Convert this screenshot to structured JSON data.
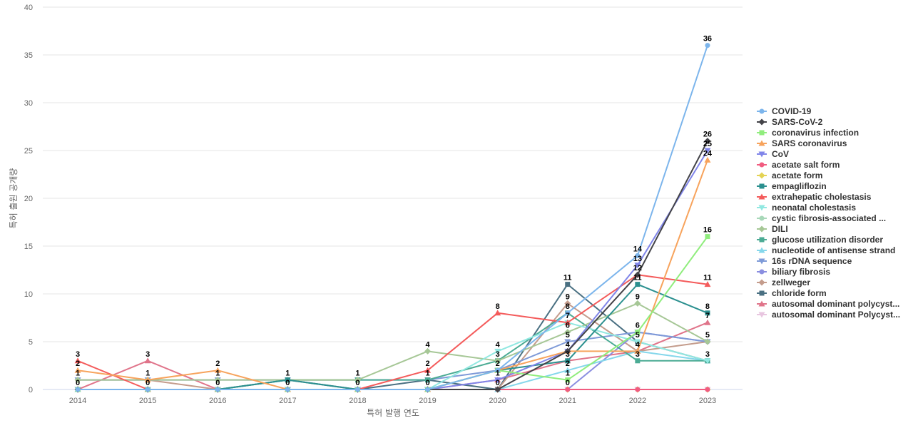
{
  "chart_data": {
    "type": "line",
    "xlabel": "특허 발행 연도",
    "ylabel": "특허 출원 공개량",
    "ylim": [
      0,
      40
    ],
    "y_ticks": [
      0,
      5,
      10,
      15,
      20,
      25,
      30,
      35,
      40
    ],
    "grid": "horizontal",
    "legend_position": "right",
    "x": [
      "2014",
      "2015",
      "2016",
      "2017",
      "2018",
      "2019",
      "2020",
      "2021",
      "2022",
      "2023"
    ],
    "series": [
      {
        "name": "COVID-19",
        "color": "#7cb5ec",
        "marker": "circle",
        "values": [
          0,
          0,
          0,
          0,
          0,
          0,
          2,
          8,
          14,
          36
        ]
      },
      {
        "name": "SARS-CoV-2",
        "color": "#434348",
        "marker": "diamond",
        "values": [
          0,
          0,
          0,
          0,
          0,
          0,
          0,
          4,
          12,
          26
        ]
      },
      {
        "name": "coronavirus infection",
        "color": "#90ed7d",
        "marker": "square",
        "values": [
          0,
          0,
          0,
          0,
          0,
          0,
          2,
          1,
          6,
          16
        ]
      },
      {
        "name": "SARS coronavirus",
        "color": "#f7a35c",
        "marker": "triangle",
        "values": [
          2,
          1,
          2,
          0,
          0,
          0,
          2,
          4,
          4,
          24
        ]
      },
      {
        "name": "CoV",
        "color": "#8085e9",
        "marker": "triangle-down",
        "values": [
          0,
          0,
          0,
          0,
          0,
          0,
          1,
          4,
          13,
          25
        ]
      },
      {
        "name": "acetate salt form",
        "color": "#f15c80",
        "marker": "circle",
        "values": [
          0,
          0,
          0,
          0,
          0,
          0,
          0,
          0,
          0,
          0
        ]
      },
      {
        "name": "acetate form",
        "color": "#e4d354",
        "marker": "diamond",
        "values": [
          0,
          0,
          0,
          0,
          0,
          0,
          0,
          0,
          0,
          0
        ]
      },
      {
        "name": "empagliflozin",
        "color": "#2b908f",
        "marker": "square",
        "values": [
          0,
          0,
          0,
          1,
          0,
          0,
          2,
          3,
          11,
          8
        ]
      },
      {
        "name": "extrahepatic cholestasis",
        "color": "#f45b5b",
        "marker": "triangle",
        "values": [
          3,
          0,
          0,
          0,
          0,
          2,
          8,
          7,
          12,
          11
        ]
      },
      {
        "name": "neonatal cholestasis",
        "color": "#91e8e1",
        "marker": "triangle-down",
        "values": [
          0,
          0,
          0,
          0,
          0,
          0,
          4,
          7,
          5,
          3
        ]
      },
      {
        "name": "cystic fibrosis-associated ...",
        "color": "#a8d8b9",
        "marker": "circle",
        "values": [
          0,
          0,
          0,
          0,
          0,
          0,
          0,
          0,
          0,
          0
        ]
      },
      {
        "name": "DILI",
        "color": "#a6c796",
        "marker": "diamond",
        "values": [
          1,
          1,
          1,
          1,
          1,
          4,
          3,
          6,
          9,
          5
        ]
      },
      {
        "name": "glucose utilization disorder",
        "color": "#4bab94",
        "marker": "square",
        "values": [
          0,
          0,
          0,
          1,
          1,
          1,
          3,
          8,
          3,
          3
        ]
      },
      {
        "name": "nucleotide of antisense strand",
        "color": "#85d7eb",
        "marker": "triangle",
        "values": [
          0,
          0,
          0,
          0,
          0,
          0,
          0,
          2,
          4,
          3
        ]
      },
      {
        "name": "16s rDNA sequence",
        "color": "#7e9ad8",
        "marker": "triangle-down",
        "values": [
          1,
          1,
          1,
          1,
          1,
          1,
          2,
          5,
          6,
          5
        ]
      },
      {
        "name": "biliary fibrosis",
        "color": "#8a8ee0",
        "marker": "circle",
        "values": [
          0,
          0,
          0,
          0,
          0,
          0,
          0,
          0,
          6,
          5
        ]
      },
      {
        "name": "zellweger",
        "color": "#c49c8c",
        "marker": "diamond",
        "values": [
          1,
          1,
          0,
          0,
          0,
          0,
          0,
          9,
          4,
          5
        ]
      },
      {
        "name": "chloride form",
        "color": "#4a7082",
        "marker": "square",
        "values": [
          0,
          0,
          0,
          1,
          0,
          1,
          0,
          11,
          5,
          3
        ]
      },
      {
        "name": "autosomal dominant polycyst...",
        "color": "#e0748a",
        "marker": "triangle",
        "values": [
          0,
          3,
          0,
          0,
          0,
          0,
          1,
          3,
          4,
          7
        ]
      },
      {
        "name": "autosomal dominant Polycyst...",
        "color": "#e8c6e0",
        "marker": "triangle-down",
        "values": [
          0,
          0,
          0,
          0,
          0,
          0,
          0,
          0,
          0,
          0
        ]
      }
    ],
    "data_labels": [
      {
        "x": "2014",
        "value": 3
      },
      {
        "x": "2014",
        "value": 2
      },
      {
        "x": "2014",
        "value": 1
      },
      {
        "x": "2014",
        "value": 0
      },
      {
        "x": "2015",
        "value": 3
      },
      {
        "x": "2015",
        "value": 1
      },
      {
        "x": "2015",
        "value": 0
      },
      {
        "x": "2016",
        "value": 2
      },
      {
        "x": "2016",
        "value": 1
      },
      {
        "x": "2016",
        "value": 0
      },
      {
        "x": "2017",
        "value": 1
      },
      {
        "x": "2017",
        "value": 0
      },
      {
        "x": "2018",
        "value": 1
      },
      {
        "x": "2018",
        "value": 0
      },
      {
        "x": "2019",
        "value": 4
      },
      {
        "x": "2019",
        "value": 2
      },
      {
        "x": "2019",
        "value": 1
      },
      {
        "x": "2019",
        "value": 0
      },
      {
        "x": "2020",
        "value": 8
      },
      {
        "x": "2020",
        "value": 4
      },
      {
        "x": "2020",
        "value": 3
      },
      {
        "x": "2020",
        "value": 2
      },
      {
        "x": "2020",
        "value": 1
      },
      {
        "x": "2020",
        "value": 0
      },
      {
        "x": "2021",
        "value": 11
      },
      {
        "x": "2021",
        "value": 9
      },
      {
        "x": "2021",
        "value": 8
      },
      {
        "x": "2021",
        "value": 7
      },
      {
        "x": "2021",
        "value": 6
      },
      {
        "x": "2021",
        "value": 5
      },
      {
        "x": "2021",
        "value": 4
      },
      {
        "x": "2021",
        "value": 3
      },
      {
        "x": "2021",
        "value": 2
      },
      {
        "x": "2021",
        "value": 1
      },
      {
        "x": "2021",
        "value": 0
      },
      {
        "x": "2022",
        "value": 14
      },
      {
        "x": "2022",
        "value": 13
      },
      {
        "x": "2022",
        "value": 12
      },
      {
        "x": "2022",
        "value": 11
      },
      {
        "x": "2022",
        "value": 9
      },
      {
        "x": "2022",
        "value": 6
      },
      {
        "x": "2022",
        "value": 5
      },
      {
        "x": "2022",
        "value": 4
      },
      {
        "x": "2022",
        "value": 3
      },
      {
        "x": "2023",
        "value": 36
      },
      {
        "x": "2023",
        "value": 26
      },
      {
        "x": "2023",
        "value": 25
      },
      {
        "x": "2023",
        "value": 24
      },
      {
        "x": "2023",
        "value": 16
      },
      {
        "x": "2023",
        "value": 11
      },
      {
        "x": "2023",
        "value": 8
      },
      {
        "x": "2023",
        "value": 7
      },
      {
        "x": "2023",
        "value": 5
      },
      {
        "x": "2023",
        "value": 3
      }
    ]
  }
}
